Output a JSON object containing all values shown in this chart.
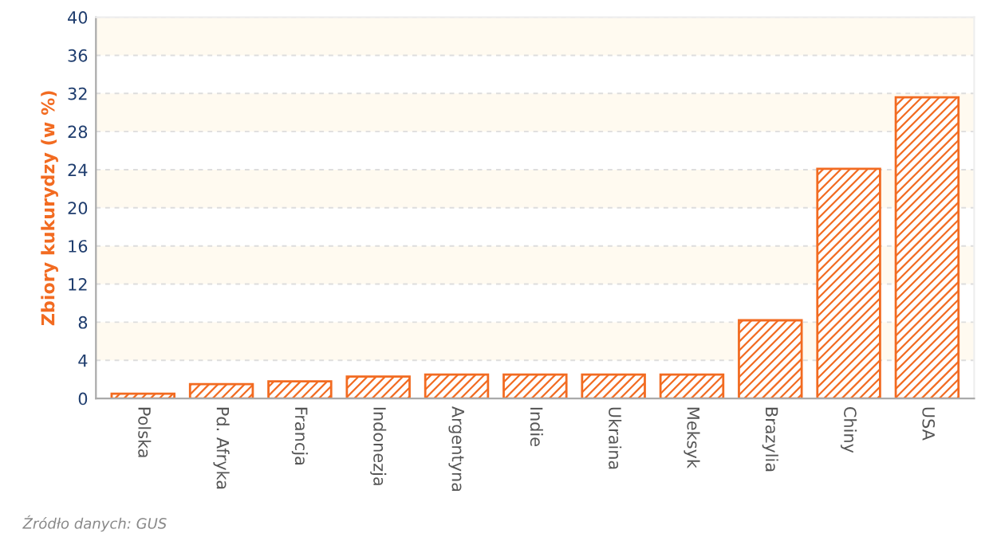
{
  "chart_data": {
    "type": "bar",
    "ylabel": "Zbiory kukurydzy (w %)",
    "categories": [
      "Polska",
      "Pd. Afryka",
      "Francja",
      "Indonezja",
      "Argentyna",
      "Indie",
      "Ukraina",
      "Meksyk",
      "Brazylia",
      "Chiny",
      "USA"
    ],
    "values": [
      0.5,
      1.5,
      1.8,
      2.3,
      2.5,
      2.5,
      2.5,
      2.5,
      8.2,
      24.1,
      31.6
    ],
    "color": "#f26b21",
    "ylim": [
      0,
      40
    ],
    "yticks": [
      0,
      4,
      8,
      12,
      16,
      20,
      24,
      28,
      32,
      36,
      40
    ],
    "grid": "y",
    "annotations": [
      "Źródło danych: GUS"
    ]
  }
}
